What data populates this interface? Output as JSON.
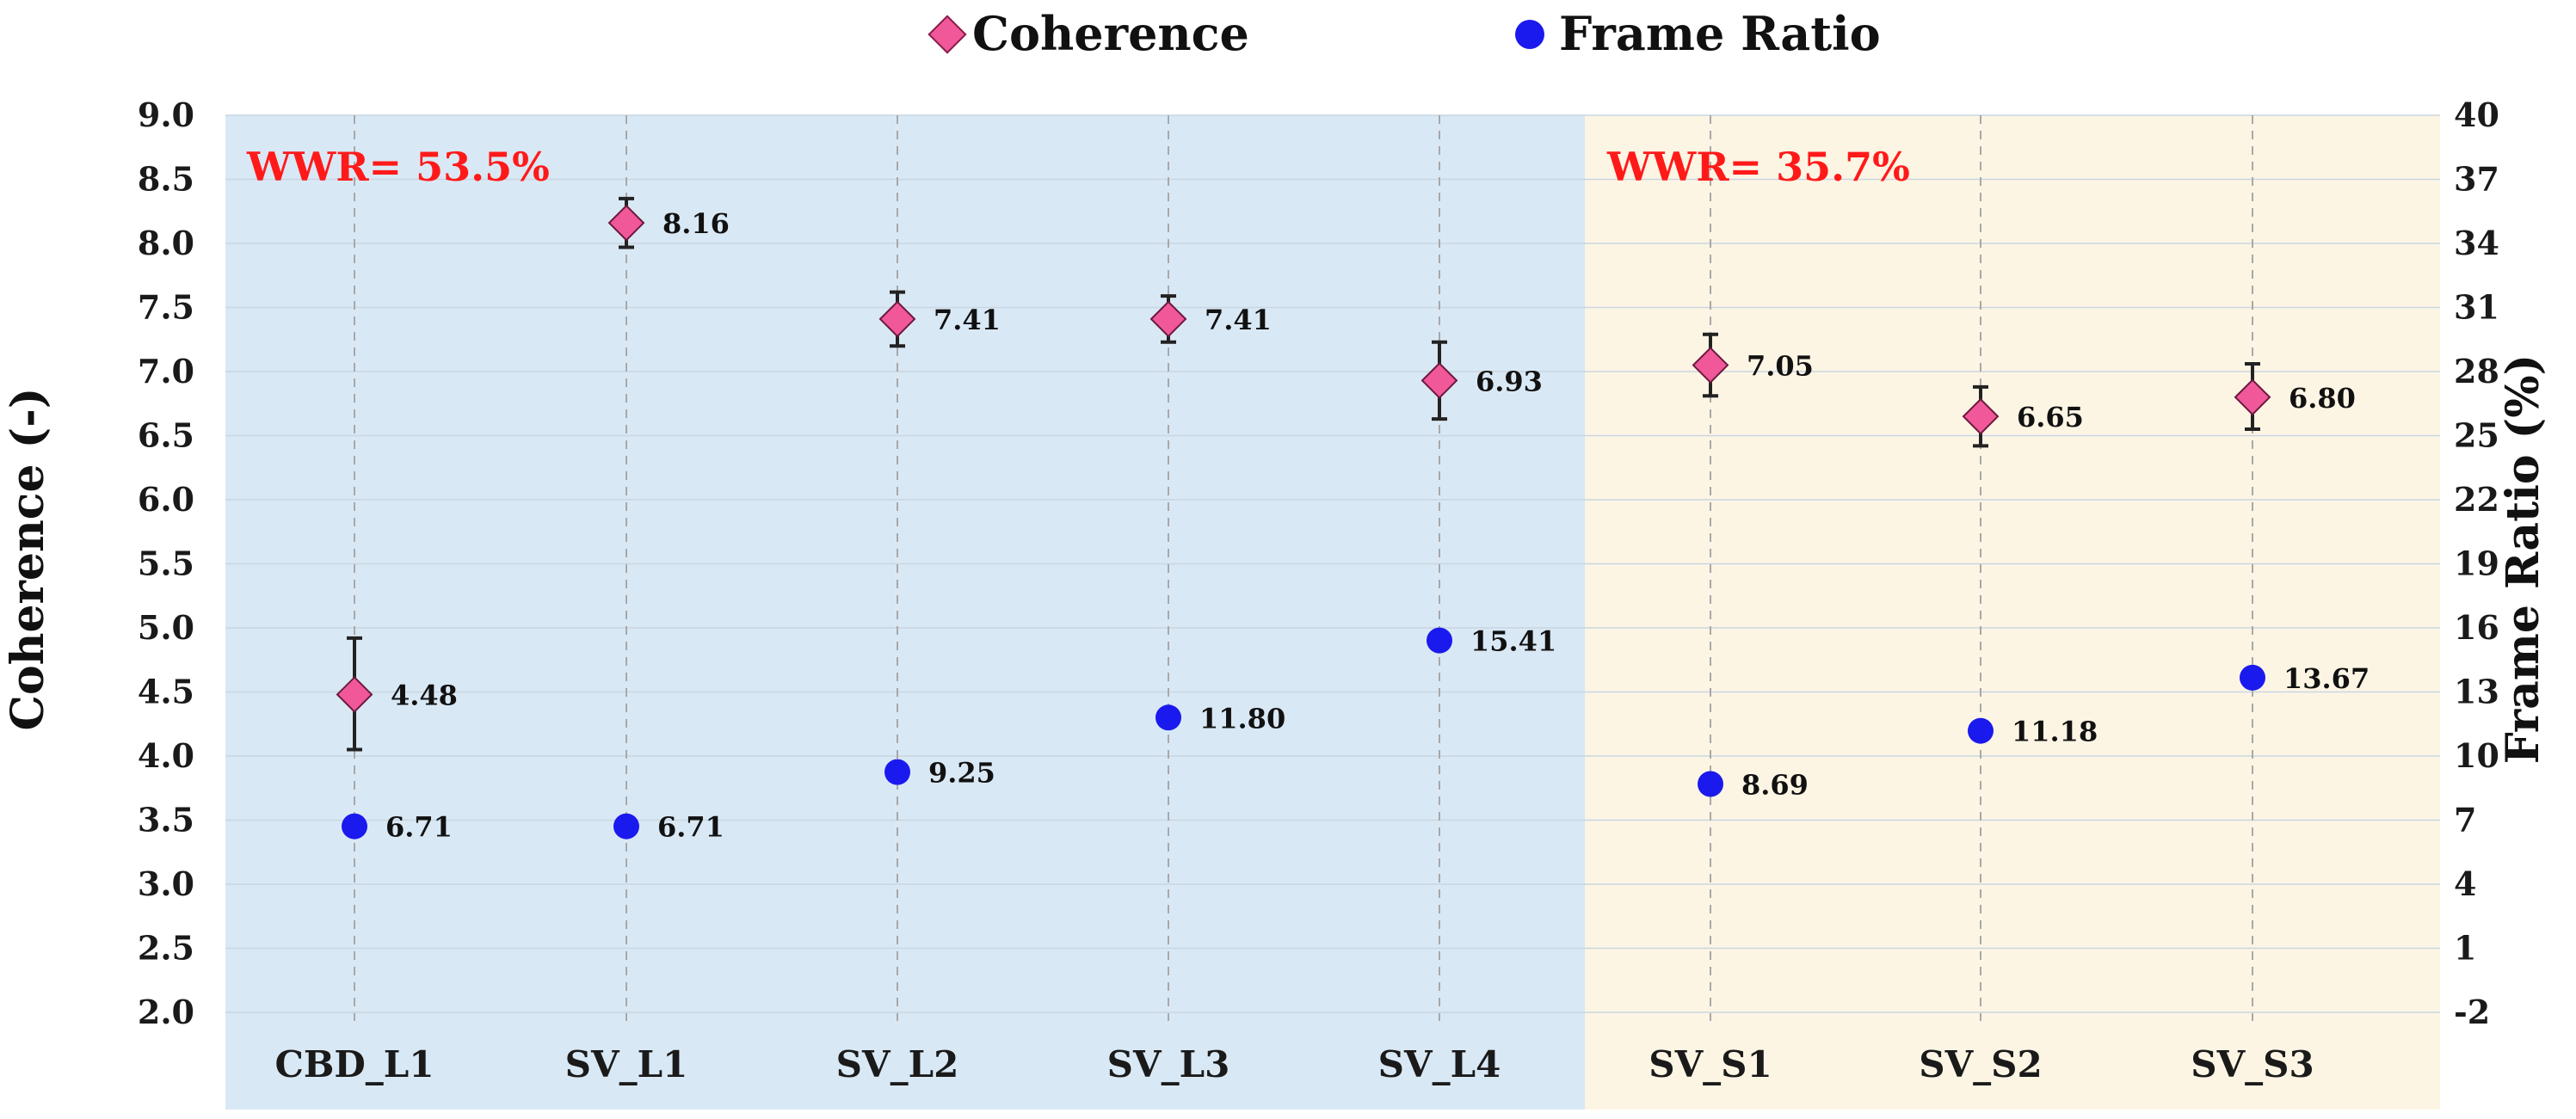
{
  "chart_data": {
    "type": "scatter",
    "categories": [
      "CBD_L1",
      "SV_L1",
      "SV_L2",
      "SV_L3",
      "SV_L4",
      "SV_S1",
      "SV_S2",
      "SV_S3"
    ],
    "series": [
      {
        "name": "Coherence",
        "axis": "left",
        "marker": "diamond",
        "color": "#f0589a",
        "values": [
          4.48,
          8.16,
          7.41,
          7.41,
          6.93,
          7.05,
          6.65,
          6.8
        ],
        "labels": [
          "4.48",
          "8.16",
          "7.41",
          "7.41",
          "6.93",
          "7.05",
          "6.65",
          "6.80"
        ],
        "error_low": [
          4.05,
          7.97,
          7.2,
          7.23,
          6.63,
          6.81,
          6.42,
          6.55
        ],
        "error_high": [
          4.92,
          8.35,
          7.62,
          7.59,
          7.23,
          7.29,
          6.88,
          7.06
        ]
      },
      {
        "name": "Frame Ratio",
        "axis": "right",
        "marker": "circle",
        "color": "#1a1aee",
        "values": [
          6.71,
          6.71,
          9.25,
          11.8,
          15.41,
          8.69,
          11.18,
          13.67
        ],
        "labels": [
          "6.71",
          "6.71",
          "9.25",
          "11.80",
          "15.41",
          "8.69",
          "11.18",
          "13.67"
        ]
      }
    ],
    "ylabel": "Coherence (-)",
    "y2label": "Frame Ratio (%)",
    "ylim": [
      2.0,
      9.0
    ],
    "y2lim": [
      -2,
      40
    ],
    "yticks": [
      "9.0",
      "8.5",
      "8.0",
      "7.5",
      "7.0",
      "6.5",
      "6.0",
      "5.5",
      "5.0",
      "4.5",
      "4.0",
      "3.5",
      "3.0",
      "2.5",
      "2.0"
    ],
    "y2ticks": [
      "40",
      "37",
      "34",
      "31",
      "28",
      "25",
      "22",
      "19",
      "16",
      "13",
      "10",
      "7",
      "4",
      "1",
      "-2"
    ],
    "legend": [
      "Coherence",
      "Frame Ratio"
    ],
    "legend_position": "top-center",
    "regions": [
      {
        "label": "WWR= 53.5%",
        "from_category": 0,
        "to_category": 4,
        "color": "#d9e8f5"
      },
      {
        "label": "WWR= 35.7%",
        "from_category": 5,
        "to_category": 7,
        "color": "#fdf5e4"
      }
    ],
    "region_label_color": "#ff1a1a",
    "grid": true
  }
}
